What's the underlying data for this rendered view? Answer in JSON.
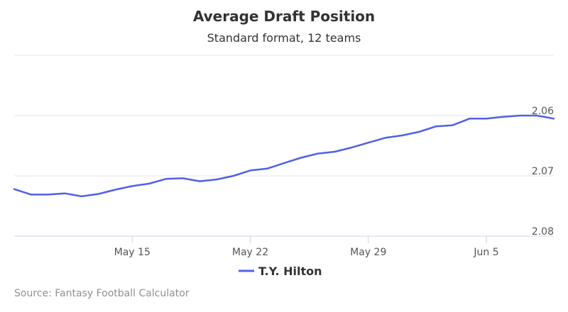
{
  "chart_data": {
    "type": "line",
    "title": "Average Draft Position",
    "subtitle": "Standard format, 12 teams",
    "xlabel": "",
    "ylabel": "",
    "x": [
      "May 8",
      "May 9",
      "May 10",
      "May 11",
      "May 12",
      "May 13",
      "May 14",
      "May 15",
      "May 16",
      "May 17",
      "May 18",
      "May 19",
      "May 20",
      "May 21",
      "May 22",
      "May 23",
      "May 24",
      "May 25",
      "May 26",
      "May 27",
      "May 28",
      "May 29",
      "May 30",
      "May 31",
      "Jun 1",
      "Jun 2",
      "Jun 3",
      "Jun 4",
      "Jun 5",
      "Jun 6",
      "Jun 7",
      "Jun 8",
      "Jun 9"
    ],
    "x_ticks": [
      "May 15",
      "May 22",
      "May 29",
      "Jun 5"
    ],
    "y_ticks": [
      "2.06",
      "2.07",
      "2.08"
    ],
    "ylim": [
      2.05,
      2.08
    ],
    "y_reversed": true,
    "grid": true,
    "legend_position": "bottom-center",
    "series": [
      {
        "name": "T.Y. Hilton",
        "color": "#5060e8",
        "values": [
          2.0722,
          2.0731,
          2.0731,
          2.0729,
          2.0734,
          2.073,
          2.0723,
          2.0717,
          2.0713,
          2.0705,
          2.0704,
          2.0709,
          2.0706,
          2.07,
          2.0691,
          2.0688,
          2.0679,
          2.067,
          2.0663,
          2.066,
          2.0653,
          2.0645,
          2.0637,
          2.0633,
          2.0627,
          2.0618,
          2.0616,
          2.0605,
          2.0605,
          2.0602,
          2.06,
          2.06,
          2.0605
        ]
      }
    ]
  },
  "credits": "Source: Fantasy Football Calculator"
}
